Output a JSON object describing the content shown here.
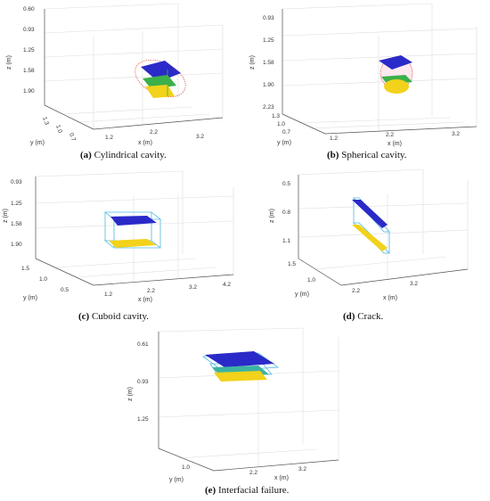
{
  "panels": {
    "a": {
      "caption_letter": "(a)",
      "caption_text": "Cylindrical cavity.",
      "z_label": "z (m)",
      "y_label": "y (m)",
      "x_label": "x (m)",
      "z_ticks": [
        "0.60",
        "0.93",
        "1.25",
        "1.58",
        "1.90"
      ],
      "y_ticks": [
        "1.3",
        "1.0",
        "0.7"
      ],
      "x_ticks": [
        "1.2",
        "2.2",
        "3.2"
      ]
    },
    "b": {
      "caption_letter": "(b)",
      "caption_text": "Spherical cavity.",
      "z_label": "z (m)",
      "y_label": "y (m)",
      "x_label": "x (m)",
      "z_ticks": [
        "0.93",
        "1.25",
        "1.58",
        "1.90",
        "2.23"
      ],
      "y_ticks": [
        "1.3",
        "1.0",
        "0.7"
      ],
      "x_ticks": [
        "1.2",
        "2.2",
        "3.2"
      ]
    },
    "c": {
      "caption_letter": "(c)",
      "caption_text": "Cuboid cavity.",
      "z_label": "z (m)",
      "y_label": "y (m)",
      "x_label": "x (m)",
      "z_ticks": [
        "0.93",
        "1.25",
        "1.58",
        "1.90"
      ],
      "y_ticks": [
        "1.5",
        "1.0",
        "0.5"
      ],
      "x_ticks": [
        "1.2",
        "2.2",
        "3.2",
        "4.2"
      ]
    },
    "d": {
      "caption_letter": "(d)",
      "caption_text": "Crack.",
      "z_label": "z (m)",
      "y_label": "y (m)",
      "x_label": "x (m)",
      "z_ticks": [
        "0.5",
        "0.8",
        "1.1"
      ],
      "y_ticks": [
        "1.5",
        "1.0"
      ],
      "x_ticks": [
        "2.2",
        "3.2"
      ]
    },
    "e": {
      "caption_letter": "(e)",
      "caption_text": "Interfacial failure.",
      "z_label": "z (m)",
      "y_label": "y (m)",
      "x_label": "x (m)",
      "z_ticks": [
        "0.61",
        "0.93",
        "1.25"
      ],
      "y_ticks": [
        "1.0"
      ],
      "x_ticks": [
        "2.2",
        "3.2"
      ]
    }
  },
  "colors": {
    "grid": "#dddddd",
    "axis": "#555555",
    "top_surface": "#2a2ac8",
    "bottom_surface": "#f2d21a",
    "green": "#3cb04a",
    "cyan_frame": "#4fb8e0",
    "red_mesh": "#e03030"
  }
}
